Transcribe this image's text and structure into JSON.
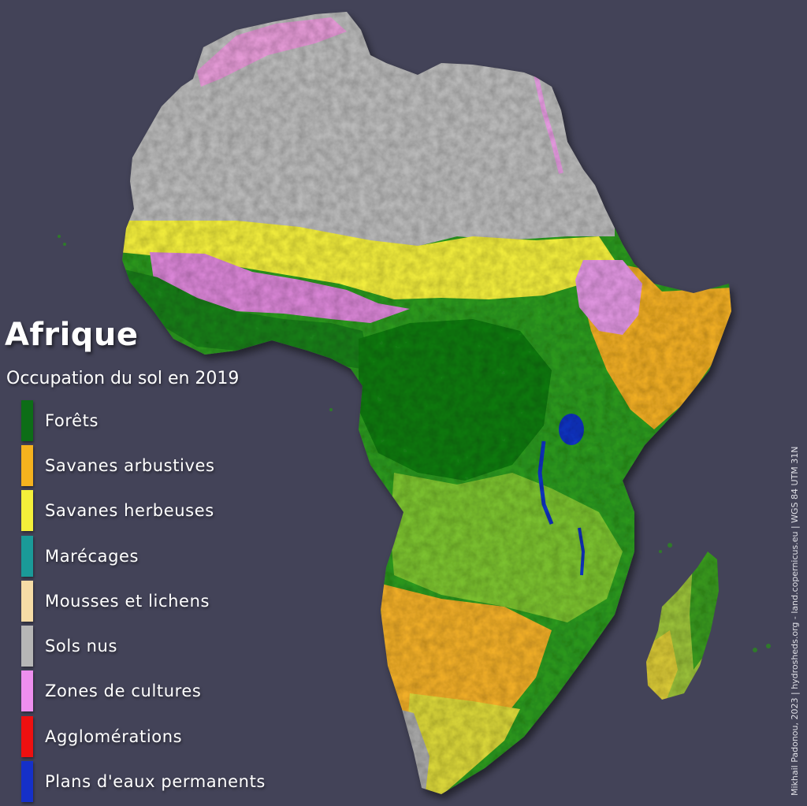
{
  "map": {
    "title": "Afrique",
    "subtitle": "Occupation du sol en 2019",
    "legend": [
      {
        "label": "Forêts",
        "color": "#0d6d17"
      },
      {
        "label": "Savanes arbustives",
        "color": "#f5b21e"
      },
      {
        "label": "Savanes herbeuses",
        "color": "#f4f03a"
      },
      {
        "label": "Marécages",
        "color": "#1a9a98"
      },
      {
        "label": "Mousses et lichens",
        "color": "#f6dca6"
      },
      {
        "label": "Sols nus",
        "color": "#b6b6b6"
      },
      {
        "label": "Zones de cultures",
        "color": "#ee8fee"
      },
      {
        "label": "Agglomérations",
        "color": "#ee1010"
      },
      {
        "label": "Plans d'eaux permanents",
        "color": "#1530c8"
      }
    ],
    "credit": "Mikhail Padonou, 2023 | hydrosheds.org - land.copernicus.eu | WGS 84 UTM 31N",
    "background_color": "#434358"
  }
}
